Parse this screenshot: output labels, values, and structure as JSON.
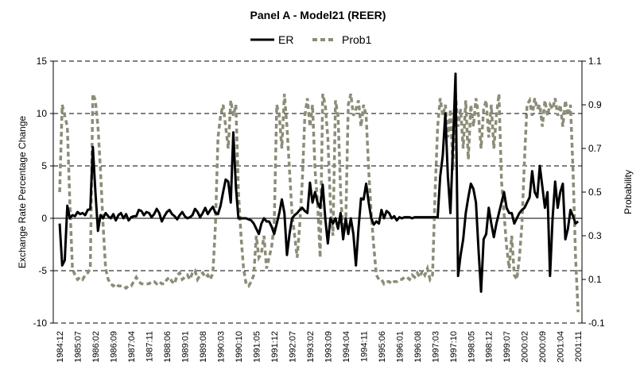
{
  "chart_data": {
    "type": "line",
    "title": "Panel A - Model21 (REER)",
    "ylabel": "Exchange Rate Percentage Change",
    "y2label": "Probability",
    "ylim": [
      -10,
      15
    ],
    "y2lim": [
      -0.1,
      1.1
    ],
    "yticks": [
      15,
      10,
      5,
      0,
      -5,
      -10
    ],
    "y2ticks": [
      1.1,
      0.9,
      0.7,
      0.5,
      0.3,
      0.1,
      -0.1
    ],
    "legend_placement": "top-center",
    "grid": "horizontal dashed",
    "x_start": "1984:12",
    "x_tick_labels": [
      "1984:12",
      "1985:07",
      "1986:02",
      "1986:09",
      "1987:04",
      "1987:11",
      "1988:06",
      "1989:01",
      "1989:08",
      "1990:03",
      "1990:10",
      "1991:05",
      "1991:12",
      "1992:07",
      "1993:02",
      "1993:09",
      "1994:04",
      "1994:11",
      "1995:06",
      "1996:01",
      "1996:08",
      "1997:03",
      "1997:10",
      "1998:05",
      "1998:12",
      "1999:07",
      "2000:02",
      "2000:09",
      "2001:04",
      "2001:11"
    ],
    "x_tick_step_months": 7,
    "series": [
      {
        "name": "ER",
        "axis": "left",
        "color": "#000000",
        "style": "solid",
        "values": [
          -0.5,
          -4.5,
          -4,
          1.2,
          0,
          0.3,
          0.2,
          0.6,
          0.4,
          0.5,
          0.3,
          0.8,
          0.9,
          6.8,
          2.5,
          -1.2,
          0.3,
          0,
          0.5,
          0.2,
          0,
          0.4,
          -0.2,
          0.3,
          0.5,
          0,
          0.4,
          -0.2,
          0.1,
          0.2,
          0.2,
          0.8,
          0.7,
          0.3,
          0.6,
          0.5,
          0.1,
          0.4,
          0.9,
          0.5,
          -0.3,
          0.2,
          0.6,
          0.8,
          0.4,
          0.2,
          -0.1,
          0.3,
          0.6,
          0.2,
          0,
          0.1,
          0.3,
          0.9,
          0.6,
          0.1,
          0.5,
          1,
          0.4,
          0.8,
          1.1,
          0.5,
          0.4,
          1.2,
          2.5,
          3.7,
          3.5,
          1.5,
          8.2,
          3,
          0,
          0,
          0,
          0,
          -0.1,
          -0.2,
          -0.5,
          -1,
          -1.5,
          -0.5,
          0,
          -0.3,
          -0.3,
          -0.8,
          -1.5,
          -0.5,
          0.5,
          1.8,
          0.5,
          -3.5,
          -1.5,
          0,
          0.3,
          0.5,
          0.8,
          1,
          0.7,
          0.5,
          3.4,
          1.5,
          2.5,
          1.5,
          1,
          3.2,
          0,
          -2.4,
          0,
          -0.5,
          0,
          -1,
          0.5,
          -2,
          0,
          -1.5,
          0,
          -1.5,
          -4.5,
          -1,
          1.9,
          1.8,
          3.3,
          1.5,
          0,
          -0.6,
          -0.3,
          -0.5,
          0.8,
          0,
          0.7,
          0.5,
          0,
          0.2,
          -0.2,
          0.1,
          0,
          0.1,
          0.1,
          0.1,
          0,
          0.1,
          0.1,
          0.1,
          0.1,
          0.1,
          0.1,
          0.1,
          0.1,
          0.1,
          0.1,
          4,
          6,
          10,
          4,
          0.5,
          7,
          13.8,
          -5.5,
          -3.5,
          -2,
          0.5,
          2,
          3.3,
          2.8,
          1.5,
          -3,
          -7,
          -2,
          -1.5,
          1,
          -0.5,
          -1.8,
          -0.5,
          0.5,
          1.5,
          2.5,
          1,
          0.5,
          0.5,
          -0.5,
          0,
          0.5,
          0.8,
          1,
          1.5,
          2,
          4.5,
          2.5,
          2,
          5,
          3,
          1,
          2.5,
          -5.5,
          0,
          3.5,
          1,
          2.5,
          3.3,
          -2,
          -1,
          0.8,
          0.2,
          -0.5,
          -0.3
        ]
      },
      {
        "name": "Prob1",
        "axis": "right",
        "color": "#8c8c78",
        "style": "dashed",
        "values": [
          0.5,
          0.9,
          0.85,
          0.8,
          0.45,
          0.15,
          0.12,
          0.1,
          0.11,
          0.1,
          0.12,
          0.13,
          0.15,
          0.95,
          0.92,
          0.8,
          0.6,
          0.35,
          0.15,
          0.1,
          0.08,
          0.07,
          0.08,
          0.07,
          0.07,
          0.07,
          0.06,
          0.07,
          0.07,
          0.09,
          0.11,
          0.09,
          0.08,
          0.08,
          0.08,
          0.08,
          0.09,
          0.09,
          0.08,
          0.09,
          0.08,
          0.08,
          0.1,
          0.11,
          0.09,
          0.08,
          0.12,
          0.13,
          0.1,
          0.11,
          0.12,
          0.1,
          0.13,
          0.14,
          0.1,
          0.12,
          0.13,
          0.11,
          0.12,
          0.1,
          0.13,
          0.35,
          0.75,
          0.85,
          0.9,
          0.8,
          0.7,
          0.92,
          0.85,
          0.9,
          0.5,
          0.3,
          0.15,
          0.08,
          0.07,
          0.09,
          0.12,
          0.3,
          0.2,
          0.22,
          0.3,
          0.15,
          0.2,
          0.25,
          0.35,
          0.9,
          0.85,
          0.7,
          0.95,
          0.8,
          0.6,
          0.4,
          0.3,
          0.2,
          0.35,
          0.55,
          0.85,
          0.93,
          0.8,
          0.9,
          0.6,
          0.45,
          0.2,
          0.95,
          0.9,
          0.75,
          0.45,
          0.3,
          0.92,
          0.85,
          0.5,
          0.3,
          0.35,
          0.9,
          0.95,
          0.85,
          0.88,
          0.92,
          0.8,
          0.9,
          0.85,
          0.6,
          0.4,
          0.25,
          0.12,
          0.1,
          0.1,
          0.08,
          0.09,
          0.09,
          0.08,
          0.09,
          0.09,
          0.1,
          0.1,
          0.11,
          0.11,
          0.1,
          0.12,
          0.11,
          0.13,
          0.11,
          0.14,
          0.12,
          0.15,
          0.1,
          0.12,
          0.5,
          0.8,
          0.93,
          0.85,
          0.9,
          0.75,
          0.88,
          0.6,
          0.95,
          0.8,
          0.88,
          0.7,
          0.92,
          0.65,
          0.9,
          0.8,
          0.93,
          0.85,
          0.7,
          0.88,
          0.92,
          0.75,
          0.9,
          0.7,
          0.85,
          0.95,
          0.55,
          0.4,
          0.25,
          0.15,
          0.3,
          0.12,
          0.1,
          0.2,
          0.35,
          0.65,
          0.9,
          0.92,
          0.85,
          0.93,
          0.88,
          0.9,
          0.8,
          0.92,
          0.85,
          0.9,
          0.88,
          0.93,
          0.85,
          0.9,
          0.8,
          0.92,
          0.85,
          0.9,
          0.6,
          0.2,
          -0.05
        ]
      }
    ]
  }
}
